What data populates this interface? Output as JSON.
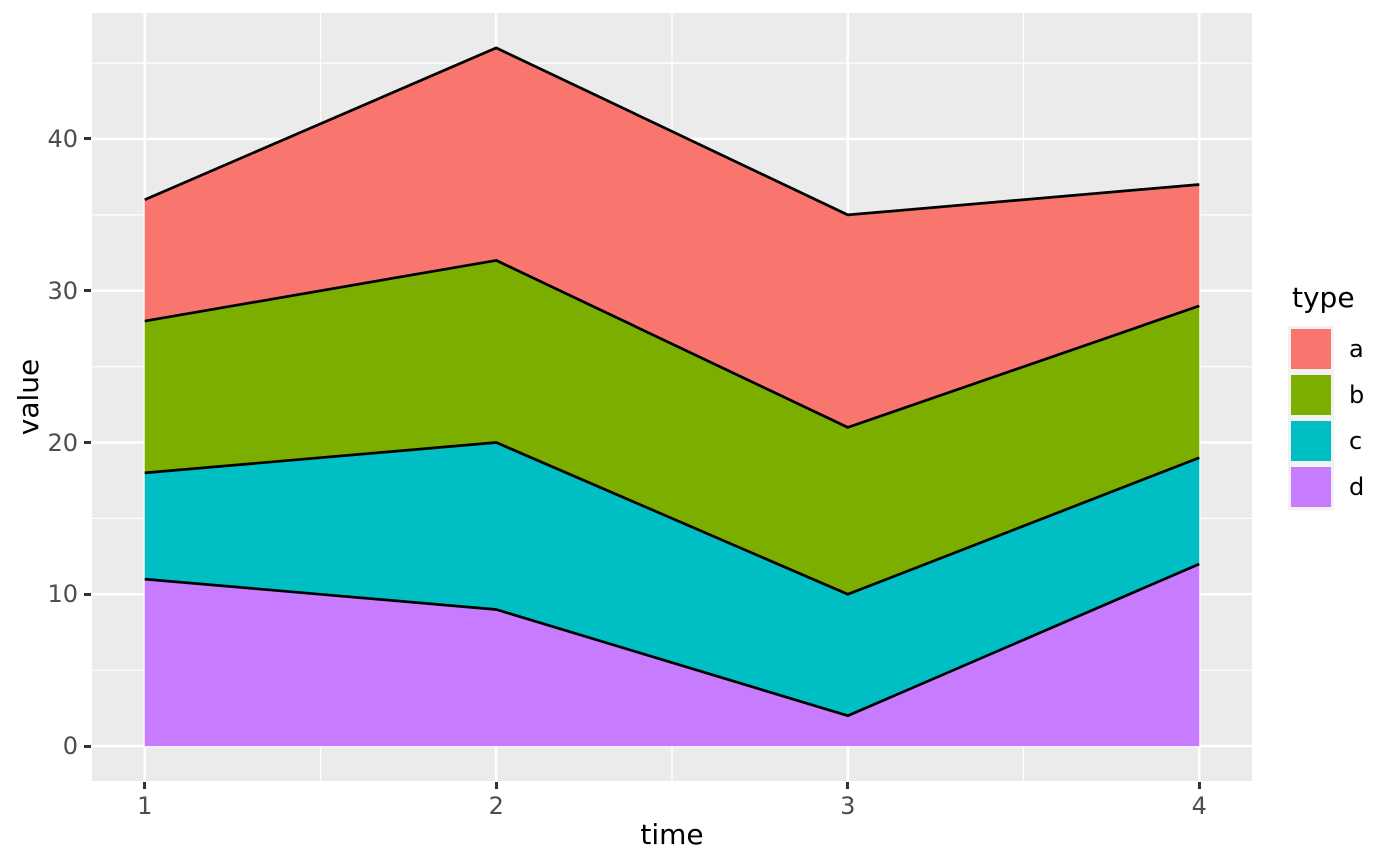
{
  "chart_data": {
    "type": "area",
    "stacked": true,
    "title": "",
    "xlabel": "time",
    "ylabel": "value",
    "x": [
      1,
      2,
      3,
      4
    ],
    "series": [
      {
        "name": "a",
        "color": "#F8766D",
        "values": [
          8,
          14,
          14,
          8
        ],
        "cumulative_top": [
          36,
          46,
          35,
          37
        ]
      },
      {
        "name": "b",
        "color": "#7CAE00",
        "values": [
          10,
          12,
          11,
          10
        ],
        "cumulative_top": [
          28,
          32,
          21,
          29
        ]
      },
      {
        "name": "c",
        "color": "#00BFC4",
        "values": [
          7,
          11,
          8,
          7
        ],
        "cumulative_top": [
          18,
          20,
          10,
          19
        ]
      },
      {
        "name": "d",
        "color": "#C77CFF",
        "values": [
          11,
          9,
          2,
          12
        ],
        "cumulative_top": [
          11,
          9,
          2,
          12
        ]
      }
    ],
    "stack_order_bottom_to_top": [
      "d",
      "c",
      "b",
      "a"
    ],
    "x_ticks": [
      1,
      2,
      3,
      4
    ],
    "x_tick_labels": [
      "1",
      "2",
      "3",
      "4"
    ],
    "y_ticks": [
      0,
      10,
      20,
      30,
      40
    ],
    "y_tick_labels": [
      "0",
      "10",
      "20",
      "30",
      "40"
    ],
    "x_minor_ticks": [
      1.5,
      2.5,
      3.5
    ],
    "y_minor_ticks": [
      5,
      15,
      25,
      35,
      45
    ],
    "xlim": [
      0.85,
      4.15
    ],
    "ylim": [
      -2.3,
      48.3
    ],
    "grid": "on",
    "legend": {
      "title": "type",
      "position": "right",
      "entries": [
        "a",
        "b",
        "c",
        "d"
      ]
    },
    "colors": {
      "panel_background": "#EBEBEB",
      "grid_line": "#FFFFFF",
      "area_outline": "#000000",
      "tick_mark": "#333333",
      "tick_label_text": "#4D4D4D",
      "axis_title_text": "#000000",
      "legend_key_background": "#F2F2F2",
      "figure_background": "#FFFFFF"
    }
  }
}
